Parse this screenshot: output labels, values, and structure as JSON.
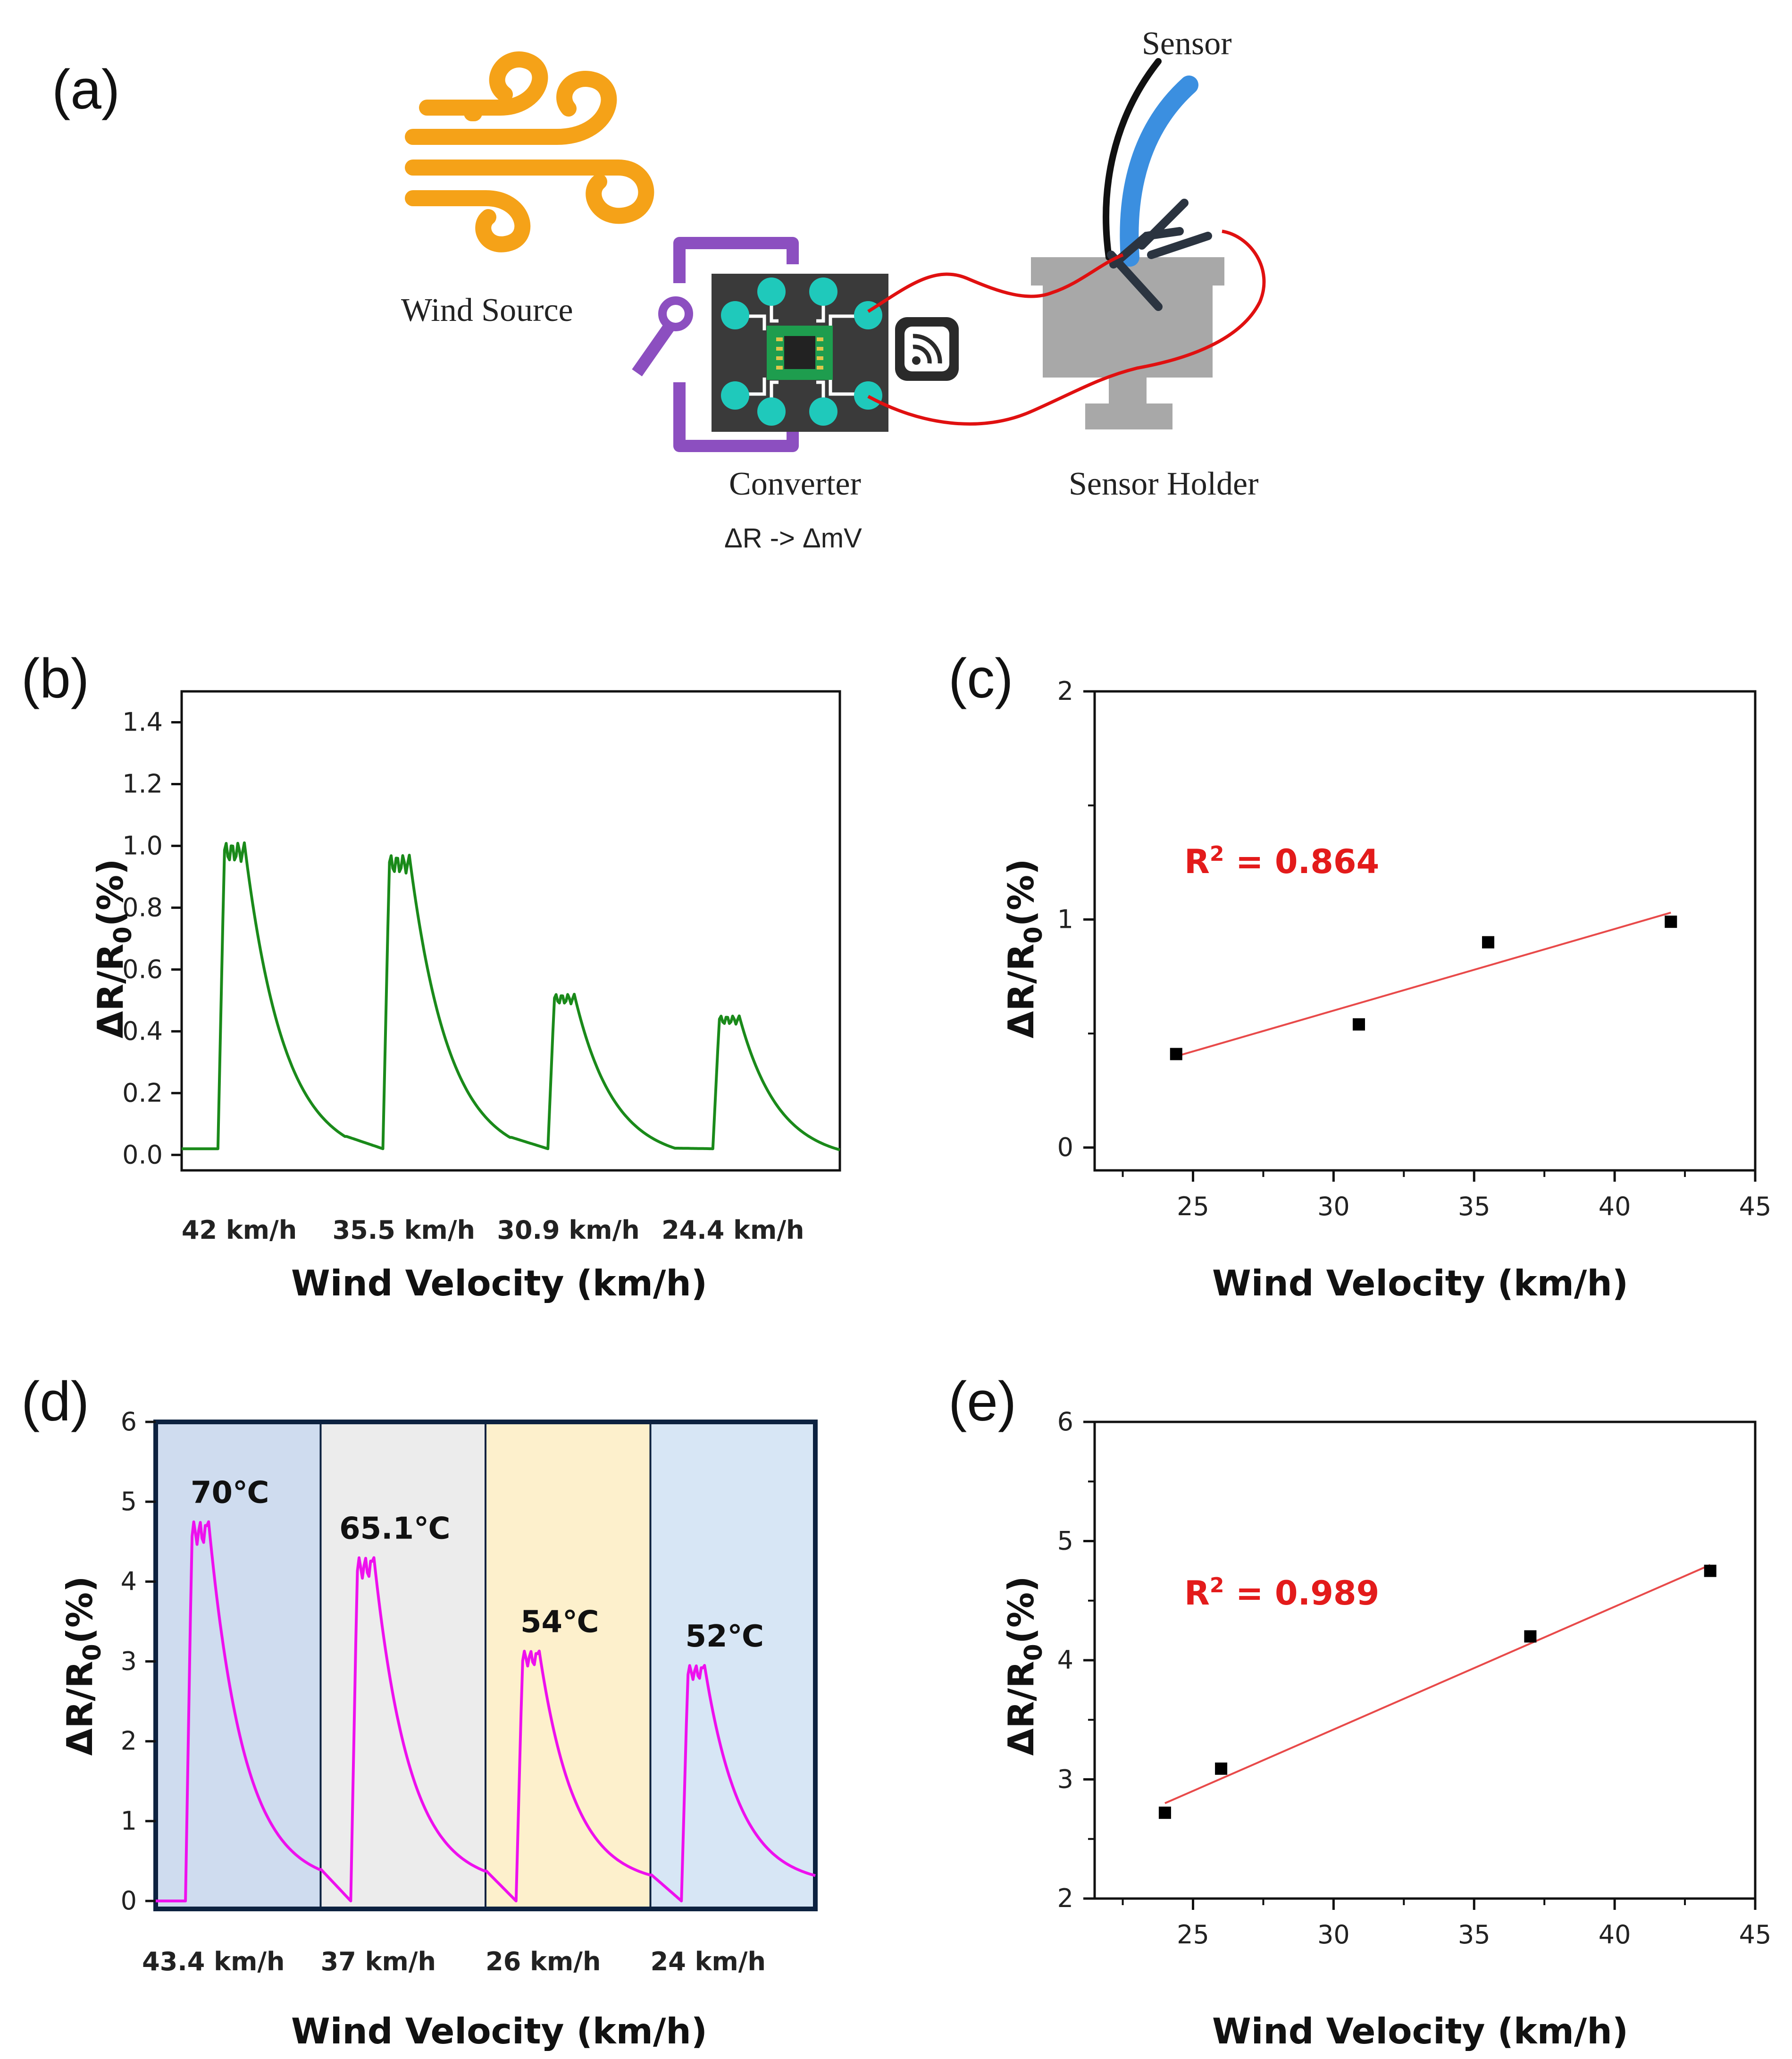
{
  "panels": {
    "a": "(a)",
    "b": "(b)",
    "c": "(c)",
    "d": "(d)",
    "e": "(e)"
  },
  "schematic": {
    "wind_source": "Wind Source",
    "sensor": "Sensor",
    "converter": "Converter",
    "converter_note": "ΔR -> ΔmV",
    "sensor_holder": "Sensor Holder",
    "icons": [
      "wind-icon",
      "chip-icon",
      "wireless-icon",
      "bent-sensor-icon",
      "holder-icon"
    ],
    "colors": {
      "wind": "#f5a218",
      "frame": "#8c4fc0",
      "board": "#3a3a3a",
      "pad": "#1fc9bb",
      "chip": "#1e9d4e",
      "wire": "#e01010",
      "sensor": "#3b8fe0",
      "holder": "#a8a8a8"
    }
  },
  "axis_text": {
    "xlabel": "Wind Velocity (km/h)",
    "ylabel_main": "ΔR/R",
    "ylabel_sub": "0",
    "ylabel_tail": "(%)"
  },
  "chart_data": [
    {
      "id": "b",
      "type": "line",
      "title": "",
      "color": "#1a8a1a",
      "ylim": [
        -0.05,
        1.5
      ],
      "yticks": [
        "0.0",
        "0.2",
        "0.4",
        "0.6",
        "0.8",
        "1.0",
        "1.2",
        "1.4"
      ],
      "categories": [
        "42 km/h",
        "35.5 km/h",
        "30.9 km/h",
        "24.4 km/h"
      ],
      "series": [
        {
          "name": "ΔR/R0",
          "peaks": [
            1.01,
            0.97,
            0.52,
            0.45
          ]
        }
      ],
      "xlabel": "Wind Velocity (km/h)",
      "ylabel": "ΔR/R0(%)"
    },
    {
      "id": "c",
      "type": "scatter",
      "x": [
        24.4,
        30.9,
        35.5,
        42
      ],
      "y": [
        0.41,
        0.54,
        0.9,
        0.99
      ],
      "fit": {
        "x": [
          24.4,
          42
        ],
        "y": [
          0.4,
          1.03
        ]
      },
      "annotation": {
        "r2_label": "R",
        "r2_sup": "2",
        "r2_value": " = 0.864"
      },
      "xlim": [
        21.5,
        45
      ],
      "ylim": [
        -0.1,
        2
      ],
      "xticks": [
        25,
        30,
        35,
        40,
        45
      ],
      "yticks": [
        0,
        1,
        2
      ],
      "xlabel": "Wind Velocity (km/h)",
      "ylabel": "ΔR/R0(%)"
    },
    {
      "id": "d",
      "type": "line",
      "color": "#ee10ee",
      "ylim": [
        -0.1,
        6
      ],
      "yticks": [
        "0",
        "1",
        "2",
        "3",
        "4",
        "5",
        "6"
      ],
      "categories": [
        "43.4 km/h",
        "37 km/h",
        "26 km/h",
        "24 km/h"
      ],
      "temperatures": [
        "70℃",
        "65.1℃",
        "54℃",
        "52℃"
      ],
      "region_colors": [
        "#cfdcef",
        "#ececec",
        "#fdf0cc",
        "#d7e6f5"
      ],
      "series": [
        {
          "name": "ΔR/R0",
          "peaks": [
            4.75,
            4.3,
            3.13,
            2.95
          ]
        }
      ],
      "xlabel": "Wind Velocity (km/h)",
      "ylabel": "ΔR/R0(%)"
    },
    {
      "id": "e",
      "type": "scatter",
      "x": [
        24,
        26,
        37,
        43.4
      ],
      "y": [
        2.72,
        3.09,
        4.2,
        4.75
      ],
      "fit": {
        "x": [
          24,
          43.4
        ],
        "y": [
          2.8,
          4.8
        ]
      },
      "annotation": {
        "r2_label": "R",
        "r2_sup": "2",
        "r2_value": " = 0.989"
      },
      "xlim": [
        21.5,
        45
      ],
      "ylim": [
        2,
        6
      ],
      "xticks": [
        25,
        30,
        35,
        40,
        45
      ],
      "yticks": [
        2,
        3,
        4,
        5,
        6
      ],
      "xlabel": "Wind Velocity (km/h)",
      "ylabel": "ΔR/R0(%)"
    }
  ]
}
